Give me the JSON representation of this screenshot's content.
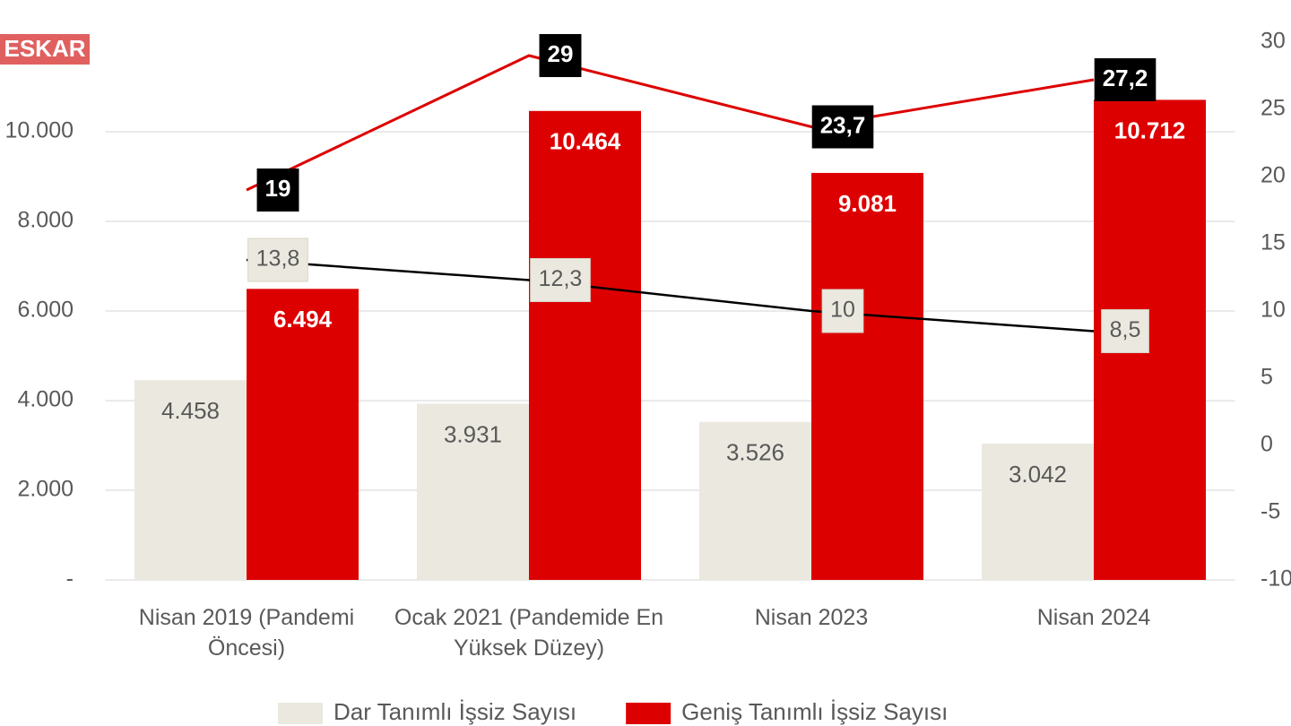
{
  "logo": "ESKAR",
  "chart_data": {
    "type": "bar",
    "categories": [
      "Nisan 2019 (Pandemi Öncesi)",
      "Ocak 2021 (Pandemide En Yüksek Düzey)",
      "Nisan 2023",
      "Nisan 2024"
    ],
    "series": [
      {
        "name": "Dar Tanımlı İşsiz Sayısı",
        "color": "#ebe9df",
        "values": [
          4458,
          3931,
          3526,
          3042
        ],
        "value_labels": [
          "4.458",
          "3.931",
          "3.526",
          "3.042"
        ]
      },
      {
        "name": "Geniş Tanımlı İşsiz Sayısı",
        "color": "#dd0000",
        "values": [
          6494,
          10464,
          9081,
          10712
        ],
        "value_labels": [
          "6.494",
          "10.464",
          "9.081",
          "10.712"
        ]
      },
      {
        "type": "line",
        "axis": "y2",
        "color": "#000000",
        "values": [
          13.8,
          12.3,
          10,
          8.5
        ],
        "value_labels": [
          "13,8",
          "12,3",
          "10",
          "8,5"
        ]
      },
      {
        "type": "line",
        "axis": "y2",
        "color": "#dd0000",
        "values": [
          19,
          29,
          23.7,
          27.2
        ],
        "value_labels": [
          "19",
          "29",
          "23,7",
          "27,2"
        ]
      }
    ],
    "ylim": [
      0,
      12000
    ],
    "yticks": [
      {
        "value": 0,
        "label": "-"
      },
      {
        "value": 2000,
        "label": "2.000"
      },
      {
        "value": 4000,
        "label": "4.000"
      },
      {
        "value": 6000,
        "label": "6.000"
      },
      {
        "value": 8000,
        "label": "8.000"
      },
      {
        "value": 10000,
        "label": "10.000"
      }
    ],
    "y2lim": [
      -10,
      30
    ],
    "y2ticks": [
      -10,
      -5,
      0,
      5,
      10,
      15,
      20,
      25,
      30
    ],
    "grid": true
  }
}
